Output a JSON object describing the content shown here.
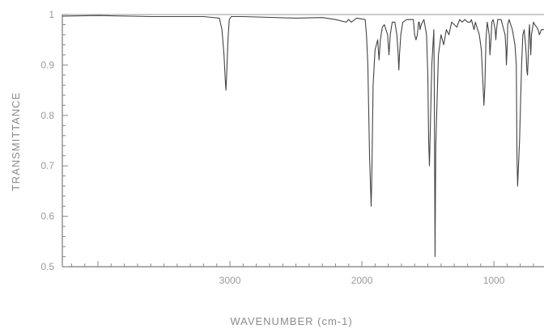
{
  "chart_data": {
    "type": "line",
    "title": "",
    "xlabel": "WAVENUMBER (cm-1)",
    "ylabel": "TRANSMITTANCE",
    "x_reversed": true,
    "xlim": [
      4270,
      620
    ],
    "ylim": [
      0.5,
      1.0
    ],
    "x_ticks": [
      3000,
      2000,
      1000
    ],
    "x_tick_labels": [
      "3000",
      "2000",
      "1000"
    ],
    "y_ticks": [
      0.5,
      0.6,
      0.7,
      0.8,
      0.9,
      1.0
    ],
    "y_tick_labels": [
      "0.5",
      "0.6",
      "0.7",
      "0.8",
      "0.9",
      "1"
    ],
    "grid": false,
    "line_color": "#444444",
    "series": [
      {
        "x": [
          4270,
          4000,
          3600,
          3200,
          3080,
          3060,
          3045,
          3035,
          3030,
          3025,
          3015,
          3005,
          2990,
          2900,
          2500,
          2300,
          2200,
          2120,
          2100,
          2080,
          2040,
          1975,
          1965,
          1955,
          1942,
          1930,
          1925,
          1915,
          1900,
          1880,
          1870,
          1860,
          1845,
          1830,
          1805,
          1795,
          1785,
          1770,
          1750,
          1735,
          1725,
          1720,
          1715,
          1705,
          1690,
          1660,
          1610,
          1600,
          1590,
          1580,
          1570,
          1565,
          1560,
          1550,
          1530,
          1510,
          1500,
          1494,
          1488,
          1480,
          1470,
          1455,
          1452,
          1449,
          1446,
          1440,
          1420,
          1400,
          1380,
          1360,
          1340,
          1320,
          1300,
          1280,
          1260,
          1240,
          1220,
          1200,
          1180,
          1170,
          1155,
          1150,
          1140,
          1110,
          1095,
          1082,
          1075,
          1068,
          1060,
          1050,
          1035,
          1030,
          1022,
          1015,
          1005,
          990,
          985,
          980,
          970,
          945,
          915,
          908,
          905,
          900,
          895,
          885,
          860,
          840,
          830,
          825,
          820,
          805,
          790,
          780,
          770,
          760,
          755,
          750,
          745,
          740,
          735,
          730,
          725,
          720,
          715,
          700,
          690,
          675,
          665,
          655,
          640,
          620
        ],
        "y": [
          0.997,
          0.998,
          0.996,
          0.996,
          0.993,
          0.97,
          0.92,
          0.87,
          0.85,
          0.88,
          0.95,
          0.99,
          0.996,
          0.996,
          0.993,
          0.994,
          0.99,
          0.985,
          0.99,
          0.985,
          0.993,
          0.99,
          0.96,
          0.9,
          0.72,
          0.62,
          0.68,
          0.86,
          0.93,
          0.95,
          0.91,
          0.95,
          0.975,
          0.98,
          0.96,
          0.92,
          0.96,
          0.985,
          0.985,
          0.96,
          0.92,
          0.89,
          0.92,
          0.96,
          0.985,
          0.99,
          0.99,
          0.96,
          0.95,
          0.96,
          0.985,
          0.985,
          0.97,
          0.98,
          0.99,
          0.96,
          0.88,
          0.75,
          0.7,
          0.79,
          0.9,
          0.97,
          0.88,
          0.7,
          0.52,
          0.74,
          0.92,
          0.96,
          0.94,
          0.97,
          0.96,
          0.985,
          0.98,
          0.975,
          0.99,
          0.985,
          0.99,
          0.985,
          0.985,
          0.99,
          0.975,
          0.97,
          0.985,
          0.96,
          0.93,
          0.86,
          0.82,
          0.86,
          0.95,
          0.985,
          0.96,
          0.92,
          0.95,
          0.985,
          0.99,
          0.97,
          0.95,
          0.97,
          0.99,
          0.99,
          0.96,
          0.93,
          0.9,
          0.93,
          0.98,
          0.99,
          0.97,
          0.94,
          0.9,
          0.72,
          0.66,
          0.75,
          0.9,
          0.96,
          0.97,
          0.94,
          0.92,
          0.89,
          0.88,
          0.91,
          0.96,
          0.98,
          0.95,
          0.92,
          0.96,
          0.985,
          0.98,
          0.975,
          0.97,
          0.96,
          0.97,
          0.97
        ]
      }
    ]
  }
}
